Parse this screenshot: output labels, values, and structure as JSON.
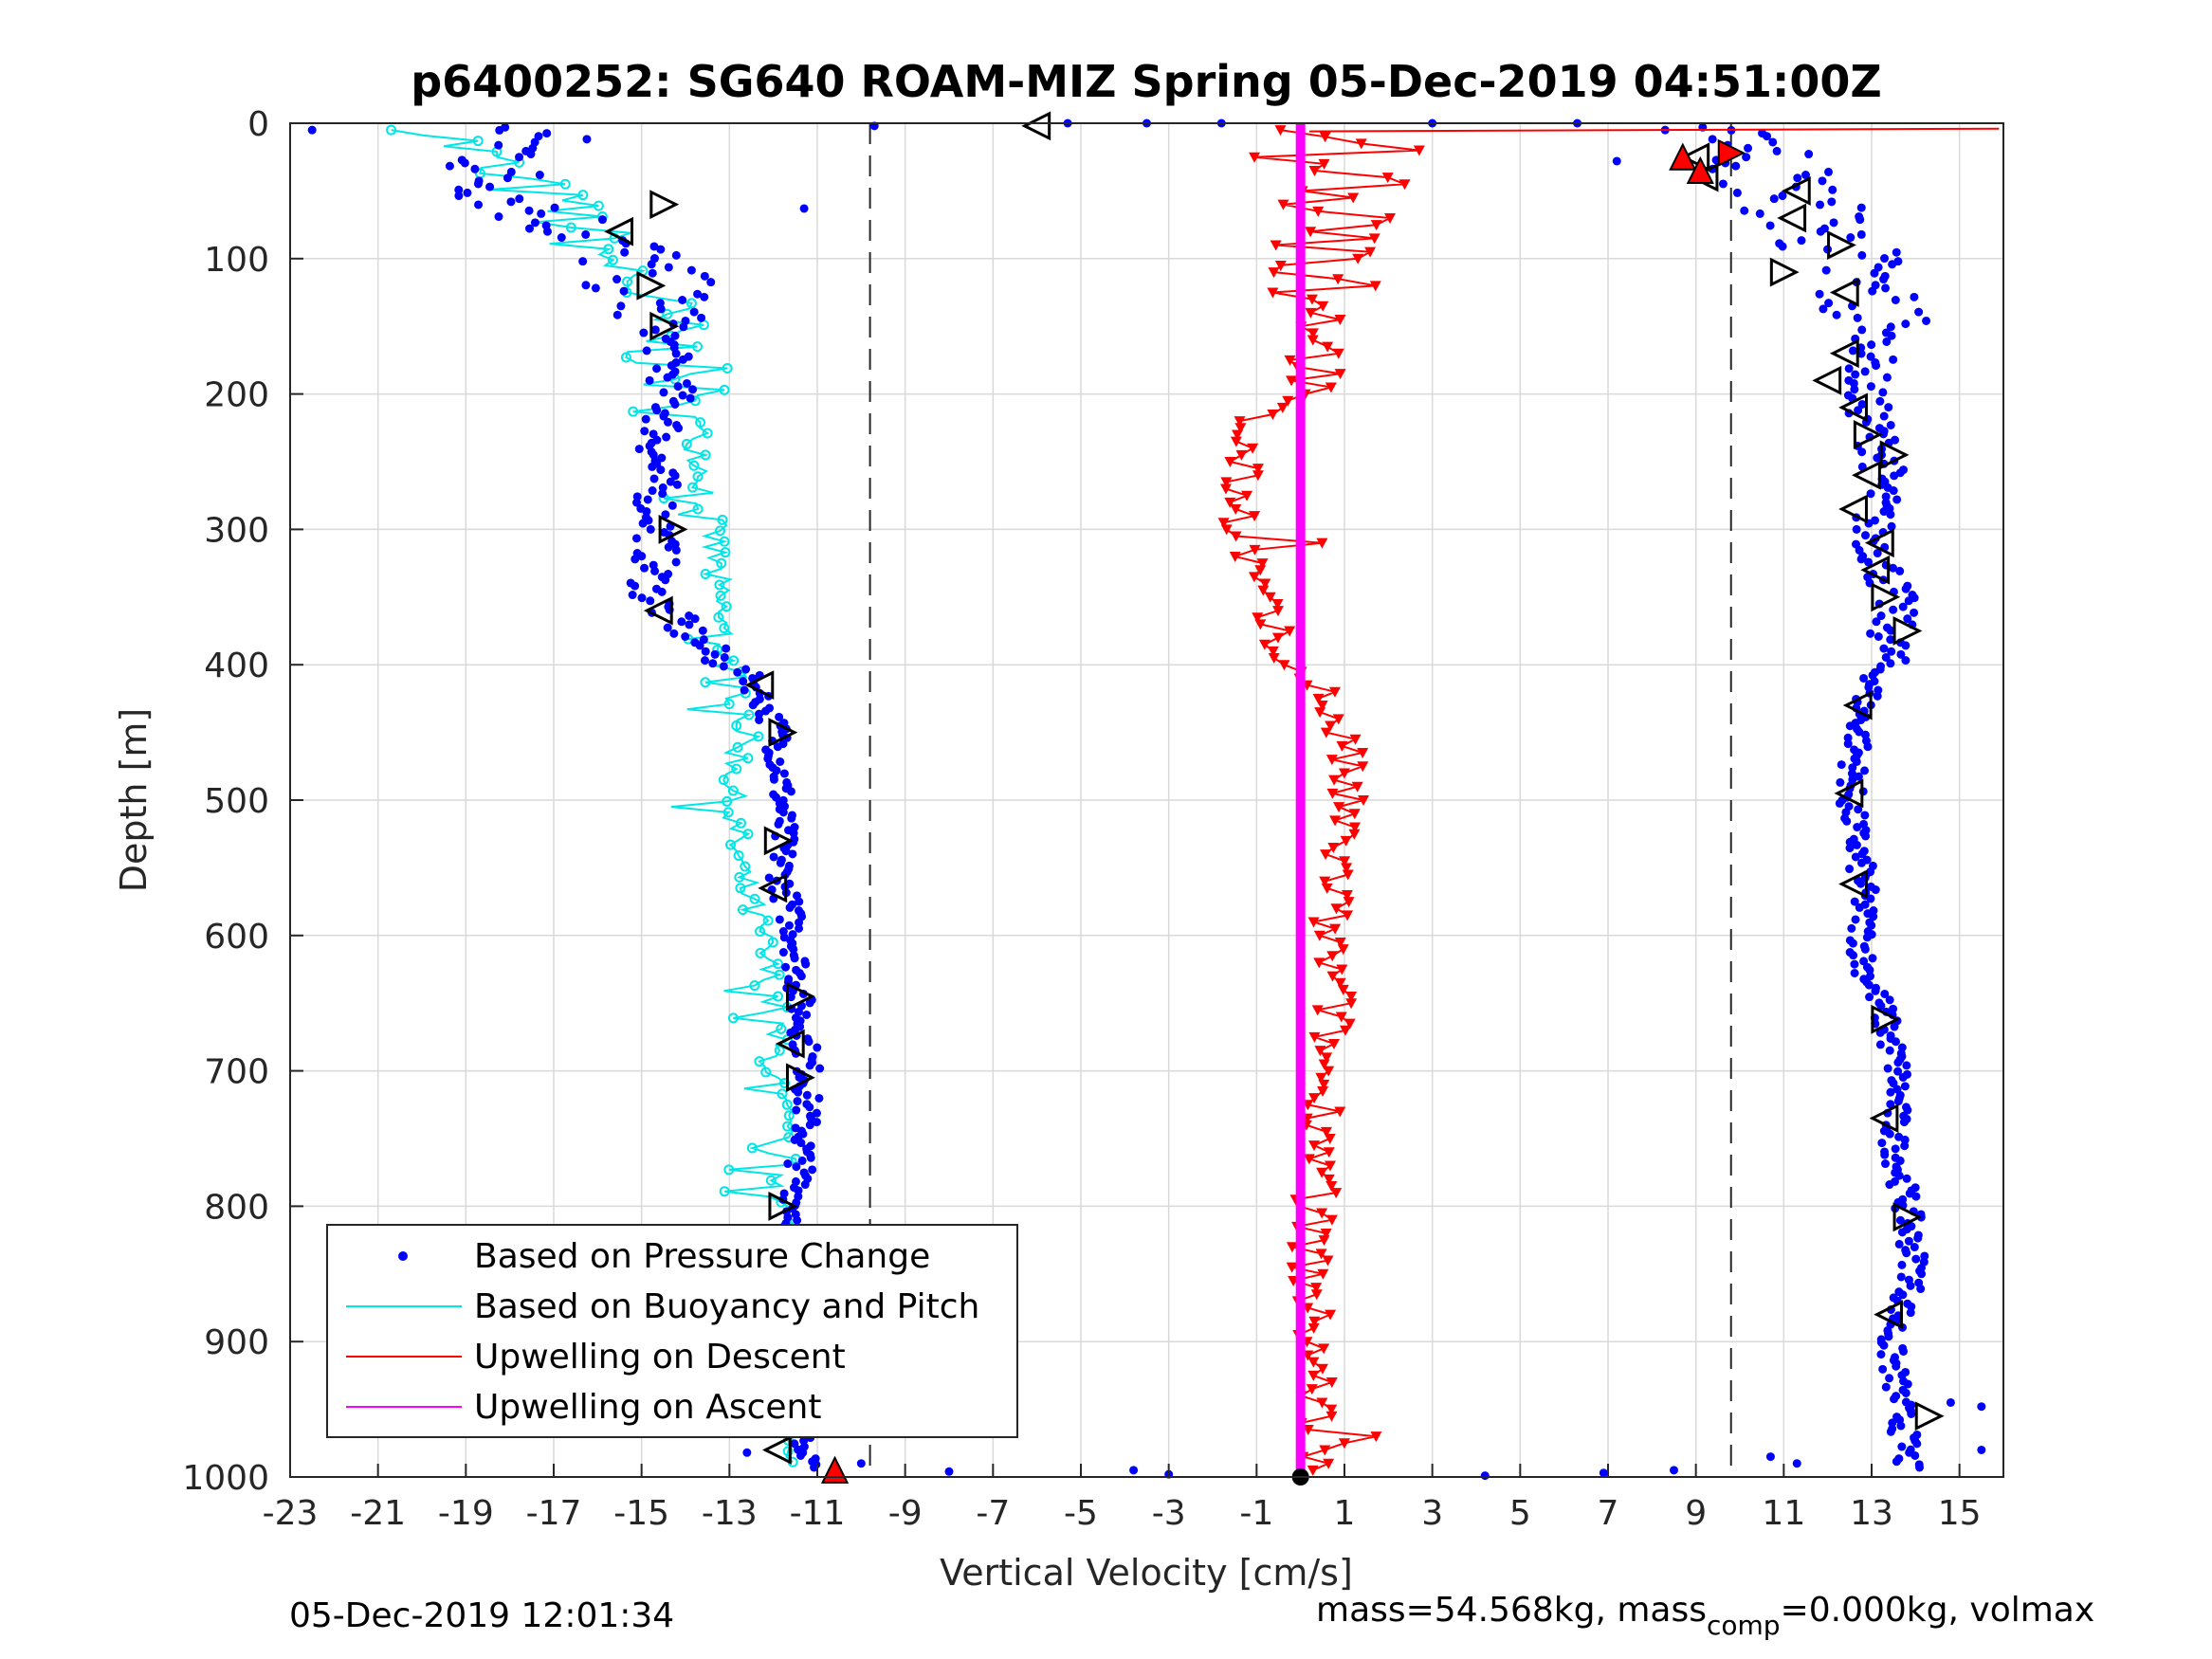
{
  "chart_data": {
    "type": "scatter",
    "title": "p6400252: SG640 ROAM-MIZ Spring 05-Dec-2019 04:51:00Z",
    "xlabel": "Vertical Velocity [cm/s]",
    "ylabel": "Depth [m]",
    "xlim": [
      -23,
      16
    ],
    "ylim": [
      0,
      1000
    ],
    "y_reversed": true,
    "grid": true,
    "legend_position": "bottom-left",
    "x_ticks": [
      "-23",
      "-21",
      "-19",
      "-17",
      "-15",
      "-13",
      "-11",
      "-9",
      "-7",
      "-5",
      "-3",
      "-1",
      "1",
      "3",
      "5",
      "7",
      "9",
      "11",
      "13",
      "15"
    ],
    "y_ticks": [
      "0",
      "100",
      "200",
      "300",
      "400",
      "500",
      "600",
      "700",
      "800",
      "900",
      "1000"
    ],
    "reference_lines_x": [
      -9.8,
      9.8
    ],
    "legend": [
      {
        "label": "Based on Pressure Change",
        "color": "#0000ff",
        "style": "dot"
      },
      {
        "label": "Based on Buoyancy and Pitch",
        "color": "#00e5e5",
        "style": "line"
      },
      {
        "label": "Upwelling on Descent",
        "color": "#ff0000",
        "style": "line"
      },
      {
        "label": "Upwelling on Ascent",
        "color": "#ff00ff",
        "style": "line"
      }
    ],
    "series": [
      {
        "name": "Based on Pressure Change (descent)",
        "color": "#0000ff",
        "profile": [
          [
            -17.5,
            10
          ],
          [
            -18.5,
            40
          ],
          [
            -17,
            70
          ],
          [
            -15.5,
            90
          ],
          [
            -15,
            110
          ],
          [
            -14.5,
            150
          ],
          [
            -14.3,
            200
          ],
          [
            -14.7,
            250
          ],
          [
            -14.6,
            300
          ],
          [
            -14.8,
            350
          ],
          [
            -13.5,
            390
          ],
          [
            -12.5,
            410
          ],
          [
            -11.9,
            450
          ],
          [
            -11.8,
            500
          ],
          [
            -11.8,
            560
          ],
          [
            -11.5,
            600
          ],
          [
            -11.4,
            650
          ],
          [
            -11.2,
            700
          ],
          [
            -11.3,
            750
          ],
          [
            -11.5,
            800
          ],
          [
            -11.4,
            850
          ],
          [
            -11.6,
            900
          ],
          [
            -11.5,
            950
          ],
          [
            -11.3,
            990
          ]
        ]
      },
      {
        "name": "Based on Pressure Change (ascent)",
        "color": "#0000ff",
        "profile": [
          [
            10.5,
            20
          ],
          [
            11,
            50
          ],
          [
            12,
            80
          ],
          [
            12.5,
            110
          ],
          [
            13.2,
            150
          ],
          [
            12.8,
            200
          ],
          [
            13.3,
            250
          ],
          [
            13,
            300
          ],
          [
            13.5,
            350
          ],
          [
            13.4,
            390
          ],
          [
            12.8,
            430
          ],
          [
            12.5,
            500
          ],
          [
            12.8,
            560
          ],
          [
            12.8,
            620
          ],
          [
            13.2,
            650
          ],
          [
            13.6,
            700
          ],
          [
            13.5,
            750
          ],
          [
            13.8,
            800
          ],
          [
            14,
            850
          ],
          [
            13.4,
            900
          ],
          [
            13.6,
            940
          ],
          [
            13.8,
            980
          ]
        ]
      },
      {
        "name": "Based on Buoyancy and Pitch",
        "color": "#00e5e5",
        "profile": [
          [
            -19.5,
            8
          ],
          [
            -18.5,
            30
          ],
          [
            -17,
            60
          ],
          [
            -16,
            90
          ],
          [
            -15,
            120
          ],
          [
            -14.5,
            160
          ],
          [
            -14,
            200
          ],
          [
            -13.6,
            250
          ],
          [
            -13.4,
            300
          ],
          [
            -13.3,
            350
          ],
          [
            -13,
            400
          ],
          [
            -12.6,
            440
          ],
          [
            -13,
            500
          ],
          [
            -12.8,
            550
          ],
          [
            -12.3,
            600
          ],
          [
            -12,
            650
          ],
          [
            -12,
            700
          ],
          [
            -11.8,
            750
          ],
          [
            -11.8,
            800
          ],
          [
            -11.6,
            850
          ],
          [
            -11.6,
            900
          ],
          [
            -11.5,
            950
          ],
          [
            -11.7,
            985
          ]
        ]
      },
      {
        "name": "Upwelling on Descent",
        "color": "#ff0000",
        "profile": [
          [
            0.8,
            20
          ],
          [
            1.5,
            60
          ],
          [
            0.8,
            100
          ],
          [
            0.6,
            150
          ],
          [
            0.3,
            190
          ],
          [
            -1.2,
            220
          ],
          [
            -1.4,
            260
          ],
          [
            -1.3,
            300
          ],
          [
            -1,
            350
          ],
          [
            -0.5,
            390
          ],
          [
            0.5,
            420
          ],
          [
            1,
            460
          ],
          [
            1,
            500
          ],
          [
            0.8,
            560
          ],
          [
            0.6,
            600
          ],
          [
            0.8,
            650
          ],
          [
            0.5,
            700
          ],
          [
            0.6,
            750
          ],
          [
            0.3,
            800
          ],
          [
            0.2,
            850
          ],
          [
            0.3,
            900
          ],
          [
            0.4,
            950
          ],
          [
            0.3,
            990
          ]
        ]
      },
      {
        "name": "Upwelling on Ascent",
        "color": "#ff00ff",
        "profile": [
          [
            0,
            0
          ],
          [
            0,
            1000
          ]
        ]
      }
    ]
  },
  "footer": {
    "timestamp": "05-Dec-2019 12:01:34",
    "mass_text": "mass=54.568kg, mass",
    "mass_subscript": "comp",
    "mass_rest": "=0.000kg, volmax"
  }
}
